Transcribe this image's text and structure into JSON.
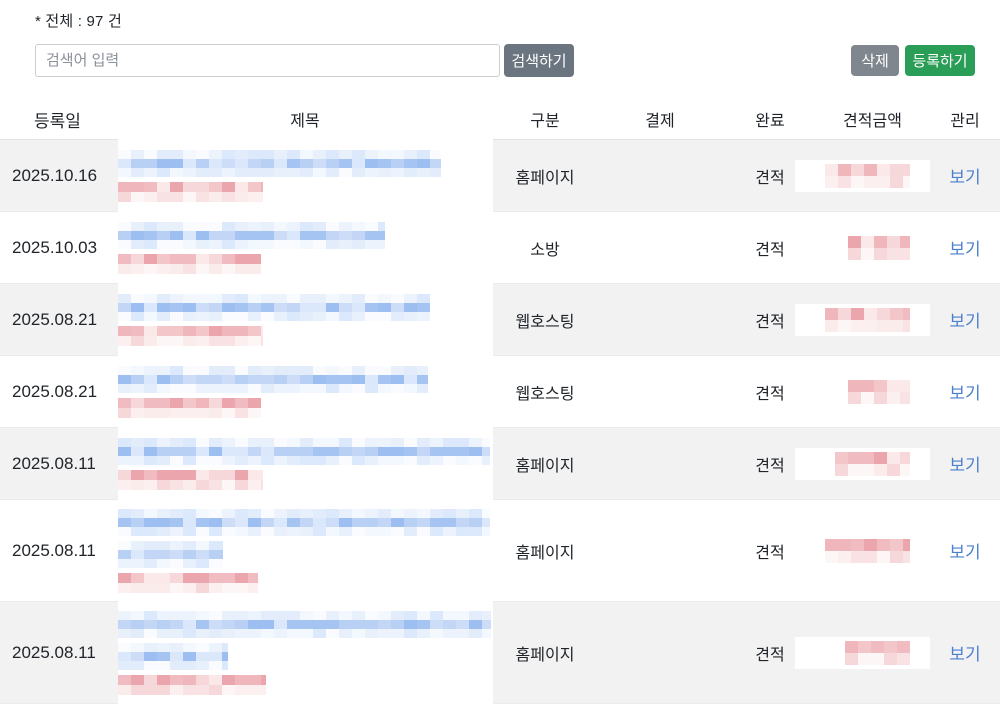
{
  "page": {
    "total_label": "* 전체 : 97 건"
  },
  "search": {
    "placeholder": "검색어 입력",
    "button_label": "검색하기"
  },
  "actions": {
    "delete_label": "삭제",
    "register_label": "등록하기"
  },
  "colors": {
    "link_blue": "#4b7fd0",
    "register_green": "#2a9d57",
    "delete_gray": "#80868e",
    "search_slate": "#6b7580",
    "row_shade": "#f2f2f3",
    "blur": {
      "blue_strong": [
        "#a5c4f1",
        "#b9d0f5",
        "#cdddf8",
        "#9cbef0",
        "#dbe7fb",
        "#c3d6f6"
      ],
      "blue_light": [
        "#e8f0fc",
        "#f3f7fe",
        "#dce8fb",
        "#f9fbfe",
        "#edf3fd",
        "#e2ecfb"
      ],
      "red_strong": [
        "#efb6bb",
        "#f3c6ca",
        "#f7d8da",
        "#eba6ad",
        "#fbe9ea",
        "#f0bcc1"
      ],
      "red_light": [
        "#fceff0",
        "#f9e2e4",
        "#fdf6f6",
        "#f7d8da",
        "#fbecec"
      ]
    }
  },
  "table": {
    "columns": [
      "등록일",
      "제목",
      "구분",
      "결제",
      "완료",
      "견적금액",
      "관리"
    ],
    "view_label": "보기",
    "rows": [
      {
        "date": "2025.10.16",
        "category": "홈페이지",
        "payment": "",
        "status": "견적",
        "shaded": true,
        "tall": false,
        "title_blur_widths": [
          323
        ],
        "subtitle_blur_width": 145,
        "amount_blur_width": 85
      },
      {
        "date": "2025.10.03",
        "category": "소방",
        "payment": "",
        "status": "견적",
        "shaded": false,
        "tall": false,
        "title_blur_widths": [
          267
        ],
        "subtitle_blur_width": 143,
        "amount_blur_width": 62
      },
      {
        "date": "2025.08.21",
        "category": "웹호스팅",
        "payment": "",
        "status": "견적",
        "shaded": true,
        "tall": false,
        "title_blur_widths": [
          312
        ],
        "subtitle_blur_width": 145,
        "amount_blur_width": 85
      },
      {
        "date": "2025.08.21",
        "category": "웹호스팅",
        "payment": "",
        "status": "견적",
        "shaded": false,
        "tall": false,
        "title_blur_widths": [
          310
        ],
        "subtitle_blur_width": 143,
        "amount_blur_width": 62
      },
      {
        "date": "2025.08.11",
        "category": "홈페이지",
        "payment": "",
        "status": "견적",
        "shaded": true,
        "tall": false,
        "title_blur_widths": [
          372
        ],
        "subtitle_blur_width": 145,
        "amount_blur_width": 75
      },
      {
        "date": "2025.08.11",
        "category": "홈페이지",
        "payment": "",
        "status": "견적",
        "shaded": false,
        "tall": true,
        "title_blur_widths": [
          372,
          105
        ],
        "subtitle_blur_width": 140,
        "amount_blur_width": 85
      },
      {
        "date": "2025.08.11",
        "category": "홈페이지",
        "payment": "",
        "status": "견적",
        "shaded": true,
        "tall": true,
        "title_blur_widths": [
          373,
          110
        ],
        "subtitle_blur_width": 148,
        "amount_blur_width": 65
      }
    ]
  }
}
